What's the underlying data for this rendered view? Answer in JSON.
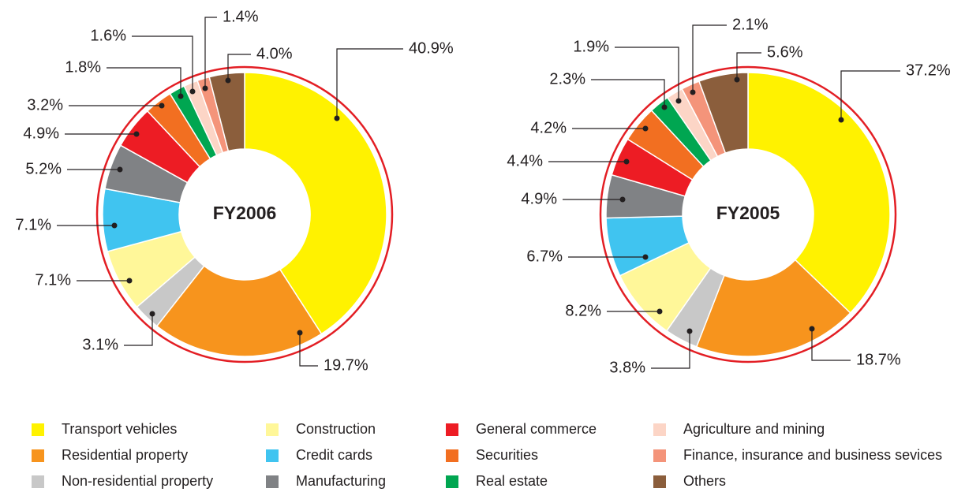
{
  "chart_data": [
    {
      "type": "pie",
      "title": "FY2006",
      "categories": [
        "Transport vehicles",
        "Residential property",
        "Non-residential property",
        "Construction",
        "Credit cards",
        "Manufacturing",
        "General commerce",
        "Securities",
        "Real estate",
        "Agriculture and mining",
        "Finance, insurance and business sevices",
        "Others"
      ],
      "values": [
        40.9,
        19.7,
        3.1,
        7.1,
        7.1,
        5.2,
        4.9,
        3.2,
        1.8,
        1.6,
        1.4,
        4
      ],
      "value_labels": [
        "40.9%",
        "19.7%",
        "3.1%",
        "7.1%",
        "7.1%",
        "5.2%",
        "4.9%",
        "3.2%",
        "1.8%",
        "1.6%",
        "1.4%",
        "4.0%"
      ],
      "colors": [
        "#fff200",
        "#f7941d",
        "#c8c8c8",
        "#fff799",
        "#40c4f0",
        "#808285",
        "#ed1c24",
        "#f26f21",
        "#00a651",
        "#fcd5c6",
        "#f4947a",
        "#8b5e3c"
      ]
    },
    {
      "type": "pie",
      "title": "FY2005",
      "categories": [
        "Transport vehicles",
        "Residential property",
        "Non-residential property",
        "Construction",
        "Credit cards",
        "Manufacturing",
        "General commerce",
        "Securities",
        "Real estate",
        "Agriculture and mining",
        "Finance, insurance and business sevices",
        "Others"
      ],
      "values": [
        37.2,
        18.7,
        3.8,
        8.2,
        6.7,
        4.9,
        4.4,
        4.2,
        2.3,
        1.9,
        2.1,
        5.6
      ],
      "value_labels": [
        "37.2%",
        "18.7%",
        "3.8%",
        "8.2%",
        "6.7%",
        "4.9%",
        "4.4%",
        "4.2%",
        "2.3%",
        "1.9%",
        "2.1%",
        "5.6%"
      ],
      "colors": [
        "#fff200",
        "#f7941d",
        "#c8c8c8",
        "#fff799",
        "#40c4f0",
        "#808285",
        "#ed1c24",
        "#f26f21",
        "#00a651",
        "#fcd5c6",
        "#f4947a",
        "#8b5e3c"
      ]
    }
  ]
}
